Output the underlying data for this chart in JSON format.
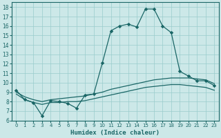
{
  "xlabel": "Humidex (Indice chaleur)",
  "x_ticks": [
    0,
    1,
    2,
    3,
    4,
    5,
    6,
    7,
    8,
    9,
    10,
    11,
    12,
    13,
    14,
    15,
    16,
    17,
    18,
    19,
    20,
    21,
    22,
    23
  ],
  "y_ticks": [
    6,
    7,
    8,
    9,
    10,
    11,
    12,
    13,
    14,
    15,
    16,
    17,
    18
  ],
  "xlim": [
    -0.5,
    23.5
  ],
  "ylim": [
    6,
    18.5
  ],
  "bg_color": "#cce8e8",
  "grid_color": "#99cccc",
  "line_color": "#1a6666",
  "line1_x": [
    0,
    1,
    2,
    3,
    4,
    5,
    6,
    7,
    8,
    9,
    10,
    11,
    12,
    13,
    14,
    15,
    16,
    17,
    18,
    19,
    20,
    21,
    22,
    23
  ],
  "line1_y": [
    9.2,
    8.2,
    7.9,
    6.5,
    8.1,
    8.0,
    7.8,
    7.3,
    8.7,
    8.8,
    12.1,
    15.5,
    16.0,
    16.2,
    15.9,
    17.8,
    17.8,
    16.0,
    15.3,
    11.2,
    10.7,
    10.2,
    10.2,
    9.7
  ],
  "line2_x": [
    0,
    1,
    2,
    3,
    4,
    5,
    6,
    7,
    8,
    9,
    10,
    11,
    12,
    13,
    14,
    15,
    16,
    17,
    18,
    19,
    20,
    21,
    22,
    23
  ],
  "line2_y": [
    9.0,
    8.5,
    8.2,
    8.0,
    8.2,
    8.3,
    8.4,
    8.5,
    8.6,
    8.8,
    9.0,
    9.3,
    9.5,
    9.7,
    9.9,
    10.1,
    10.3,
    10.4,
    10.5,
    10.5,
    10.5,
    10.4,
    10.3,
    9.9
  ],
  "line3_x": [
    0,
    1,
    2,
    3,
    4,
    5,
    6,
    7,
    8,
    9,
    10,
    11,
    12,
    13,
    14,
    15,
    16,
    17,
    18,
    19,
    20,
    21,
    22,
    23
  ],
  "line3_y": [
    8.8,
    8.2,
    7.9,
    7.7,
    7.9,
    7.9,
    8.0,
    8.0,
    8.1,
    8.3,
    8.5,
    8.7,
    8.9,
    9.1,
    9.3,
    9.5,
    9.6,
    9.7,
    9.8,
    9.8,
    9.7,
    9.6,
    9.5,
    9.2
  ]
}
